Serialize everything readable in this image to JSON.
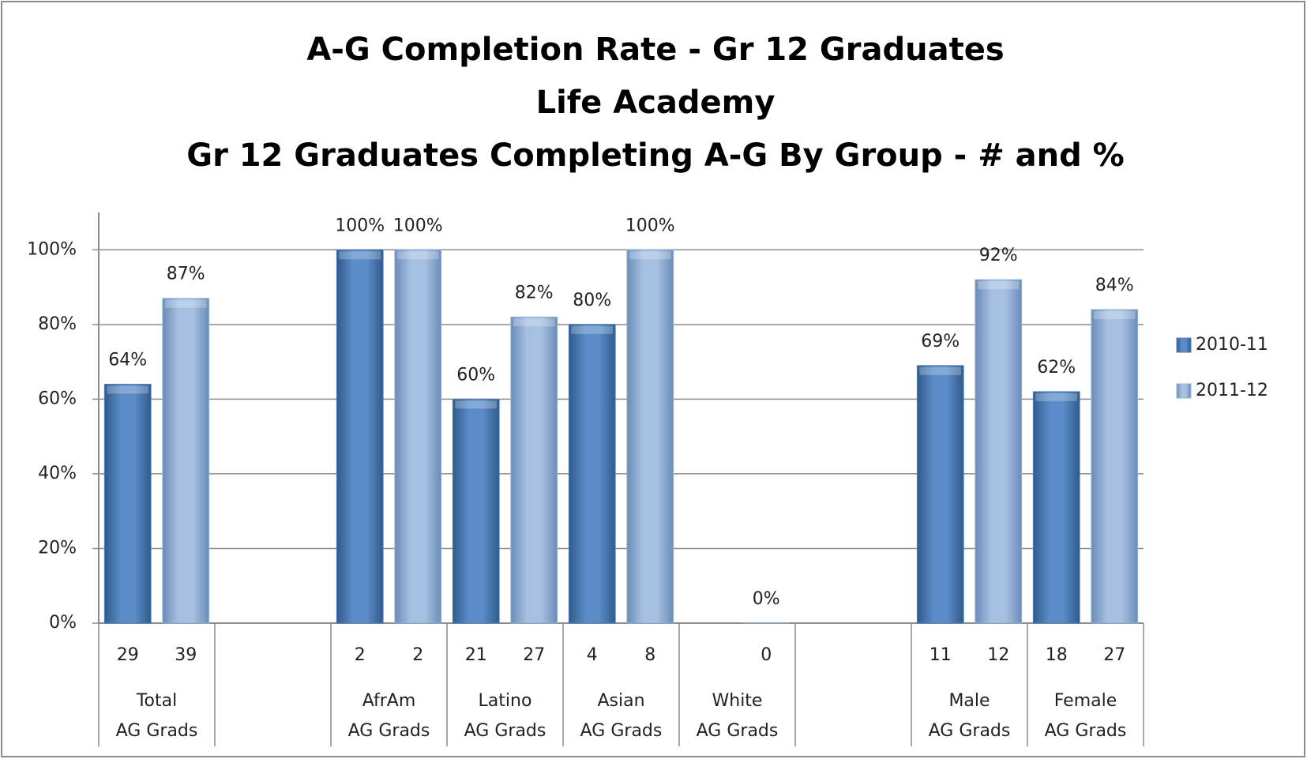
{
  "chart_data": {
    "type": "bar",
    "title": [
      "A-G Completion Rate - Gr 12 Graduates",
      "Life Academy",
      "Gr 12 Graduates Completing A-G By Group - # and %"
    ],
    "categories": [
      [
        "Total",
        "AG Grads"
      ],
      null,
      [
        "AfrAm",
        "AG Grads"
      ],
      [
        "Latino",
        "AG Grads"
      ],
      [
        "Asian",
        "AG Grads"
      ],
      [
        "White",
        "AG Grads"
      ],
      null,
      [
        "Male",
        "AG Grads"
      ],
      [
        "Female",
        "AG Grads"
      ]
    ],
    "series": [
      {
        "name": "2010-11",
        "color": "#4f81bd",
        "values": [
          64,
          null,
          100,
          60,
          80,
          null,
          null,
          69,
          62
        ],
        "value_labels": [
          "64%",
          null,
          "100%",
          "60%",
          "80%",
          null,
          null,
          "69%",
          "62%"
        ],
        "counts": [
          29,
          null,
          2,
          21,
          4,
          null,
          null,
          11,
          18
        ]
      },
      {
        "name": "2011-12",
        "color": "#95b3d7",
        "values": [
          87,
          null,
          100,
          82,
          100,
          0,
          null,
          92,
          84
        ],
        "value_labels": [
          "87%",
          null,
          "100%",
          "82%",
          "100%",
          "0%",
          null,
          "92%",
          "84%"
        ],
        "counts": [
          39,
          null,
          2,
          27,
          8,
          0,
          null,
          12,
          27
        ]
      }
    ],
    "ylim": [
      0,
      110
    ],
    "yticks": [
      {
        "value": 0,
        "label": "0%"
      },
      {
        "value": 20,
        "label": "20%"
      },
      {
        "value": 40,
        "label": "40%"
      },
      {
        "value": 60,
        "label": "60%"
      },
      {
        "value": 80,
        "label": "80%"
      },
      {
        "value": 100,
        "label": "100%"
      }
    ],
    "grid": true,
    "legend": "right"
  }
}
